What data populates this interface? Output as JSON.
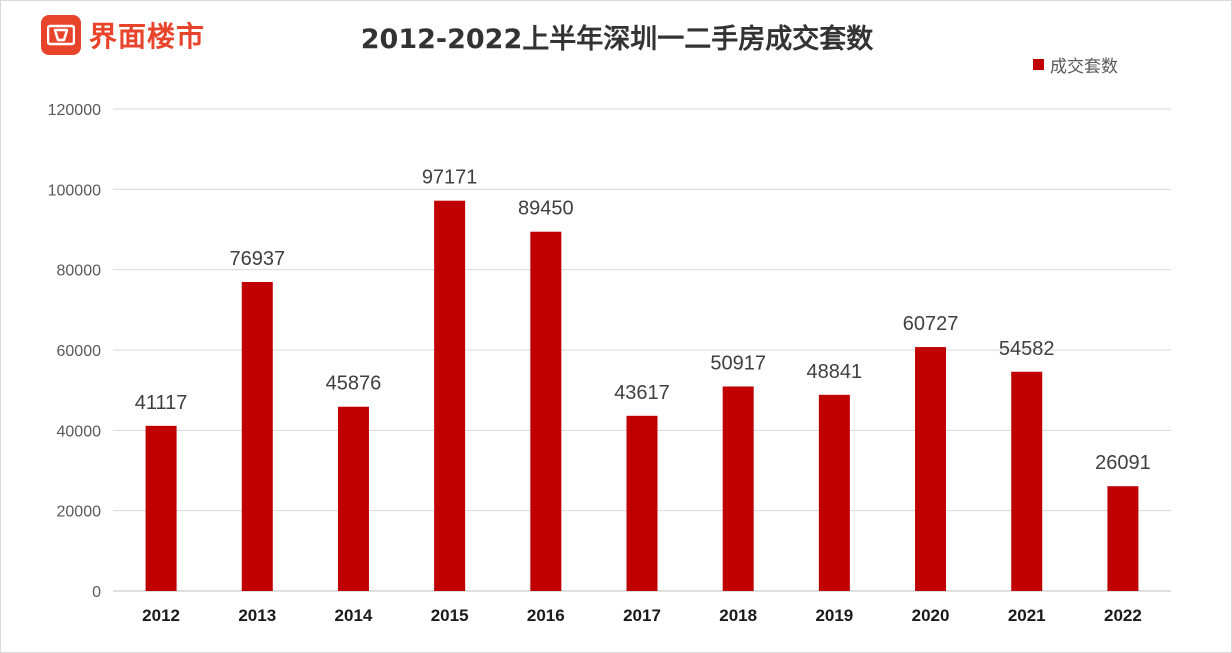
{
  "brand": {
    "logo_text": "界面楼市",
    "color": "#e8442b"
  },
  "chart_data": {
    "type": "bar",
    "title": "2012-2022上半年深圳一二手房成交套数",
    "categories": [
      "2012",
      "2013",
      "2014",
      "2015",
      "2016",
      "2017",
      "2018",
      "2019",
      "2020",
      "2021",
      "2022"
    ],
    "series": [
      {
        "name": "成交套数",
        "color": "#c00000",
        "values": [
          41117,
          76937,
          45876,
          97171,
          89450,
          43617,
          50917,
          48841,
          60727,
          54582,
          26091
        ]
      }
    ],
    "ylim": [
      0,
      120000
    ],
    "yticks": [
      0,
      20000,
      40000,
      60000,
      80000,
      100000,
      120000
    ],
    "grid": true,
    "legend_position": "top-right",
    "data_labels": true
  }
}
